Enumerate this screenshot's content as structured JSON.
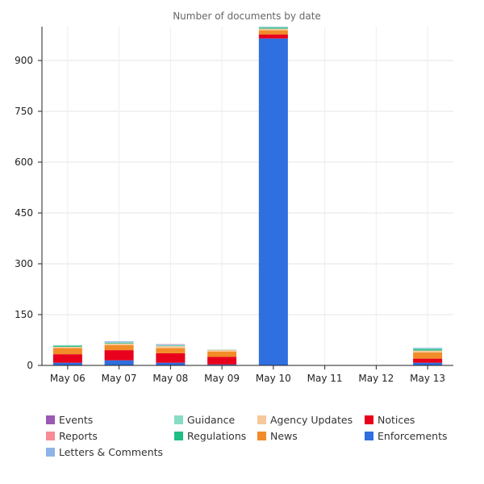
{
  "chart_data": {
    "type": "bar",
    "stacked": true,
    "title": "Number of documents by date",
    "xlabel": "",
    "ylabel": "",
    "ylim": [
      0,
      1000
    ],
    "yticks": [
      0,
      150,
      300,
      450,
      600,
      750,
      900
    ],
    "grid": true,
    "legend_position": "bottom",
    "categories": [
      "May 06",
      "May 07",
      "May 08",
      "May 09",
      "May 10",
      "May 11",
      "May 12",
      "May 13"
    ],
    "series": [
      {
        "name": "Enforcements",
        "color": "#2f6fe0",
        "values": [
          8,
          15,
          8,
          3,
          965,
          0,
          0,
          8
        ]
      },
      {
        "name": "Notices",
        "color": "#e8001c",
        "values": [
          25,
          30,
          28,
          22,
          12,
          0,
          0,
          12
        ]
      },
      {
        "name": "News",
        "color": "#f28c28",
        "values": [
          18,
          15,
          15,
          16,
          12,
          0,
          0,
          18
        ]
      },
      {
        "name": "Agency Updates",
        "color": "#f7c89b",
        "values": [
          4,
          5,
          6,
          5,
          5,
          0,
          0,
          6
        ]
      },
      {
        "name": "Regulations",
        "color": "#1fbf84",
        "values": [
          3,
          2,
          1,
          0,
          3,
          0,
          0,
          4
        ]
      },
      {
        "name": "Guidance",
        "color": "#86dcc4",
        "values": [
          2,
          1,
          2,
          1,
          2,
          0,
          0,
          2
        ]
      },
      {
        "name": "Letters & Comments",
        "color": "#8fb3e8",
        "values": [
          0,
          3,
          2,
          0,
          1,
          0,
          0,
          2
        ]
      },
      {
        "name": "Reports",
        "color": "#f78b96",
        "values": [
          0,
          0,
          1,
          0,
          0,
          0,
          0,
          0
        ]
      },
      {
        "name": "Events",
        "color": "#9b59b6",
        "values": [
          0,
          0,
          0,
          0,
          0,
          0,
          0,
          0
        ]
      }
    ],
    "legend_order": [
      "Events",
      "Guidance",
      "Agency Updates",
      "Notices",
      "Reports",
      "Regulations",
      "News",
      "Enforcements",
      "Letters & Comments"
    ]
  }
}
